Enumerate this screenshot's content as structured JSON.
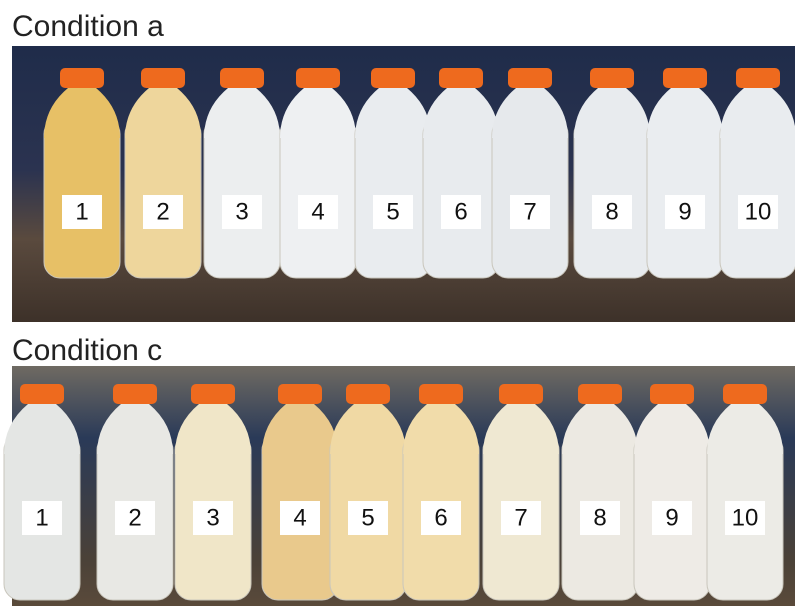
{
  "panels": [
    {
      "title": "Condition a",
      "labels": [
        "1",
        "2",
        "3",
        "4",
        "5",
        "6",
        "7",
        "8",
        "9",
        "10"
      ]
    },
    {
      "title": "Condition c",
      "labels": [
        "1",
        "2",
        "3",
        "4",
        "5",
        "6",
        "7",
        "8",
        "9",
        "10"
      ]
    }
  ]
}
